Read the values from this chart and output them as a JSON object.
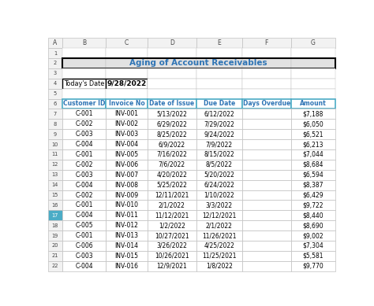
{
  "title": "Aging of Account Receivables",
  "today_label": "Today's Date",
  "today_value": "9/28/2022",
  "col_headers": [
    "Customer ID",
    "Invoice No",
    "Date of Issue",
    "Due Date",
    "Days Overdue",
    "Amount"
  ],
  "rows": [
    [
      "C-001",
      "INV-001",
      "5/13/2022",
      "6/12/2022",
      "",
      "$7,188"
    ],
    [
      "C-002",
      "INV-002",
      "6/29/2022",
      "7/29/2022",
      "",
      "$6,050"
    ],
    [
      "C-003",
      "INV-003",
      "8/25/2022",
      "9/24/2022",
      "",
      "$6,521"
    ],
    [
      "C-004",
      "INV-004",
      "6/9/2022",
      "7/9/2022",
      "",
      "$6,213"
    ],
    [
      "C-001",
      "INV-005",
      "7/16/2022",
      "8/15/2022",
      "",
      "$7,044"
    ],
    [
      "C-002",
      "INV-006",
      "7/6/2022",
      "8/5/2022",
      "",
      "$8,684"
    ],
    [
      "C-003",
      "INV-007",
      "4/20/2022",
      "5/20/2022",
      "",
      "$6,594"
    ],
    [
      "C-004",
      "INV-008",
      "5/25/2022",
      "6/24/2022",
      "",
      "$8,387"
    ],
    [
      "C-002",
      "INV-009",
      "12/11/2021",
      "1/10/2022",
      "",
      "$6,429"
    ],
    [
      "C-001",
      "INV-010",
      "2/1/2022",
      "3/3/2022",
      "",
      "$9,722"
    ],
    [
      "C-004",
      "INV-011",
      "11/12/2021",
      "12/12/2021",
      "",
      "$8,440"
    ],
    [
      "C-005",
      "INV-012",
      "1/2/2022",
      "2/1/2022",
      "",
      "$8,690"
    ],
    [
      "C-001",
      "INV-013",
      "10/27/2021",
      "11/26/2021",
      "",
      "$9,002"
    ],
    [
      "C-006",
      "INV-014",
      "3/26/2022",
      "4/25/2022",
      "",
      "$7,304"
    ],
    [
      "C-003",
      "INV-015",
      "10/26/2021",
      "11/25/2021",
      "",
      "$5,581"
    ],
    [
      "C-004",
      "INV-016",
      "12/9/2021",
      "1/8/2022",
      "",
      "$9,770"
    ]
  ],
  "col_letters": [
    "A",
    "B",
    "C",
    "D",
    "E",
    "F",
    "G"
  ],
  "row_numbers_all": [
    "1",
    "2",
    "3",
    "4",
    "5",
    "6",
    "7",
    "8",
    "9",
    "10",
    "11",
    "12",
    "13",
    "14",
    "15",
    "16",
    "17",
    "18",
    "19",
    "20",
    "21",
    "22"
  ],
  "header_text_color": "#2E74B5",
  "grid_color": "#C0C0C0",
  "grid_color_dark": "#000000",
  "title_bg": "#E2E2E2",
  "title_text_color": "#2E74B5",
  "col_header_border_color": "#4BACC6",
  "row17_col_a_bg": "#4BACC6",
  "fig_bg": "#FFFFFF",
  "col_letter_bg": "#F2F2F2",
  "row_num_bg": "#F2F2F2",
  "data_bg": "#FFFFFF",
  "today_border_color": "#000000",
  "title_border_color": "#000000"
}
